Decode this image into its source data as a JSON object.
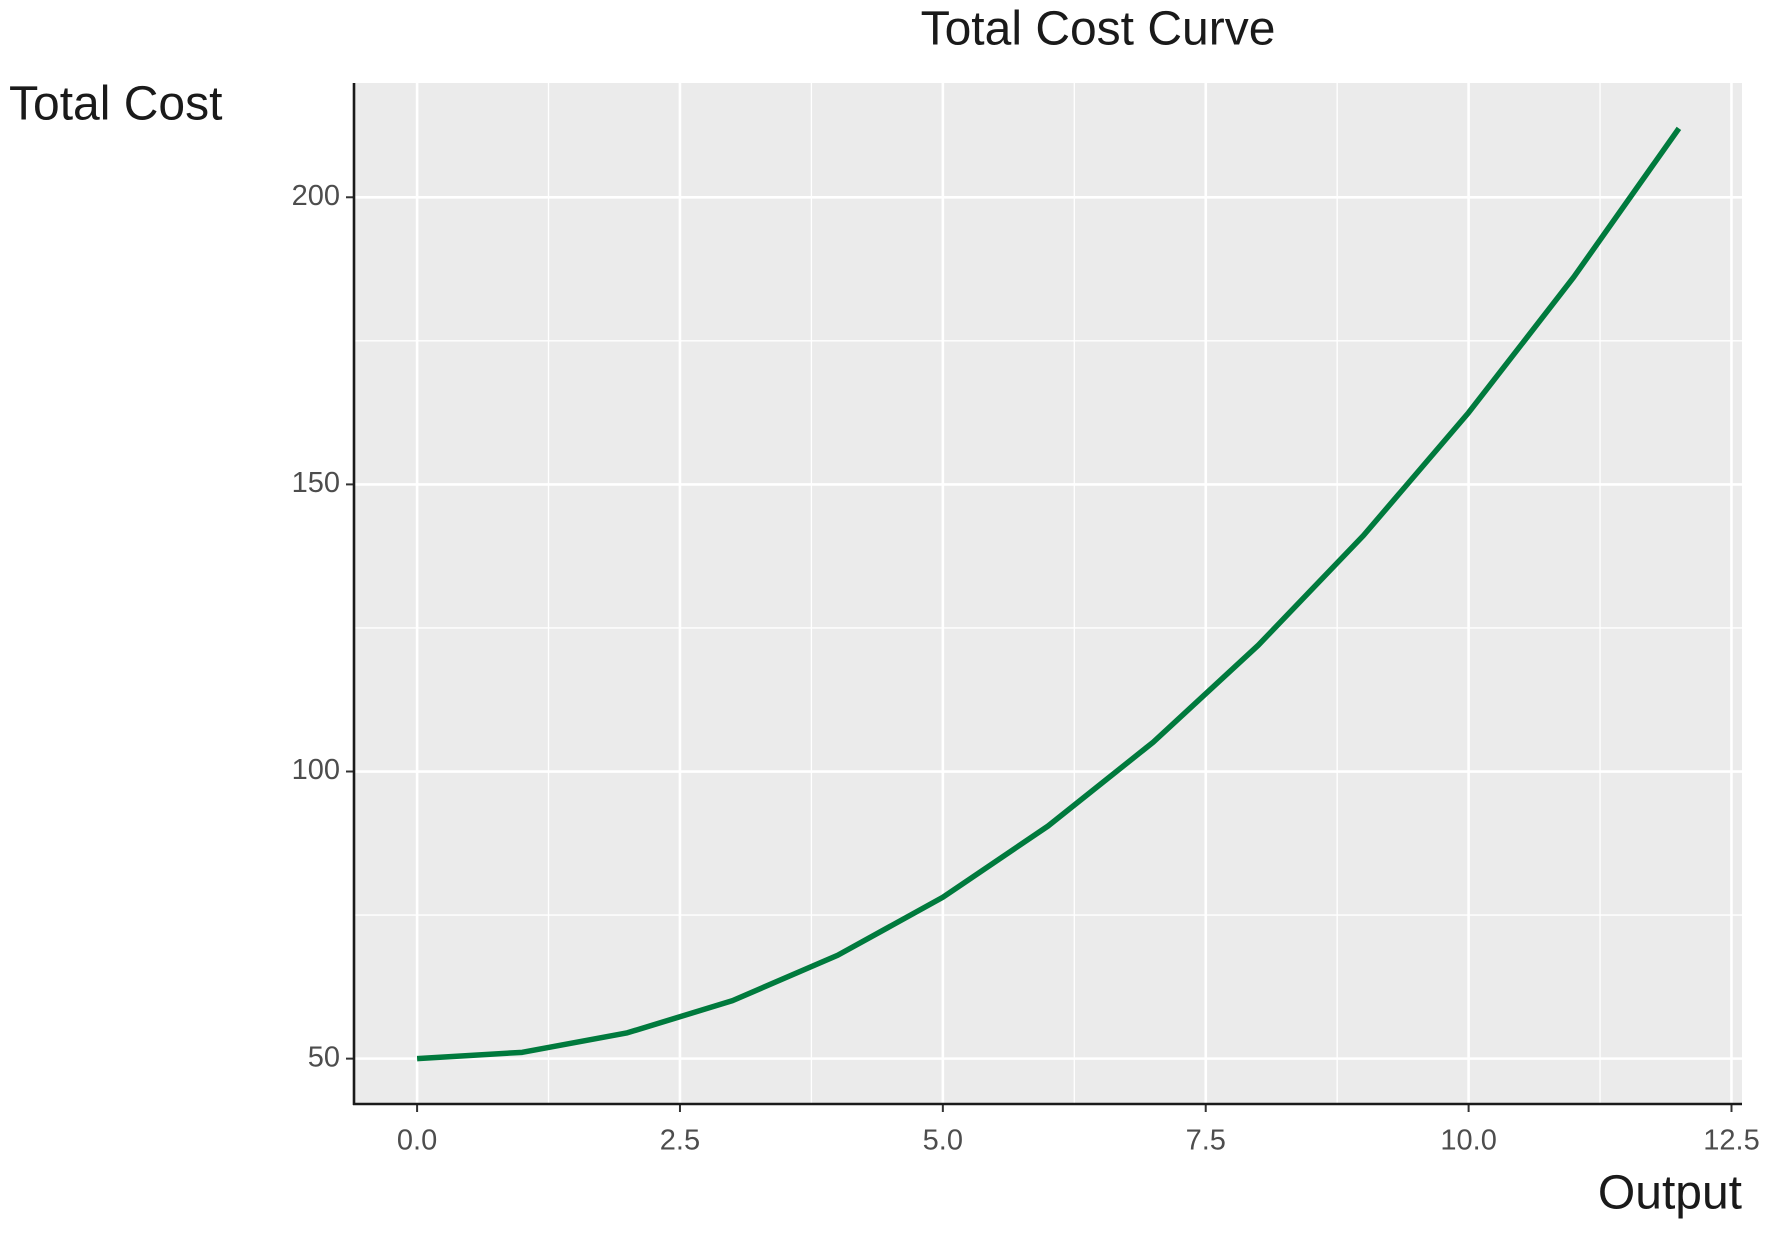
{
  "chart_data": {
    "type": "line",
    "title": "Total Cost Curve",
    "x_label": "Output",
    "y_label": "Total Cost",
    "x": [
      0,
      1,
      2,
      3,
      4,
      5,
      6,
      7,
      8,
      9,
      10,
      11,
      12
    ],
    "series": [
      {
        "name": "Total Cost",
        "color": "#007a3d",
        "values": [
          50,
          51.1,
          54.5,
          60.1,
          68,
          78.1,
          90.5,
          105.1,
          122,
          141.1,
          162.5,
          186.1,
          212
        ]
      }
    ],
    "xlim": [
      -0.6,
      12.6
    ],
    "ylim": [
      42.1,
      219.9
    ],
    "xticks": [
      {
        "value": 0,
        "label": "0.0"
      },
      2.5,
      {
        "value": 5,
        "label": "5.0"
      },
      7.5,
      {
        "value": 10,
        "label": "10.0"
      },
      12.5
    ],
    "yticks": [
      50,
      100,
      150,
      200
    ],
    "grid": true
  }
}
